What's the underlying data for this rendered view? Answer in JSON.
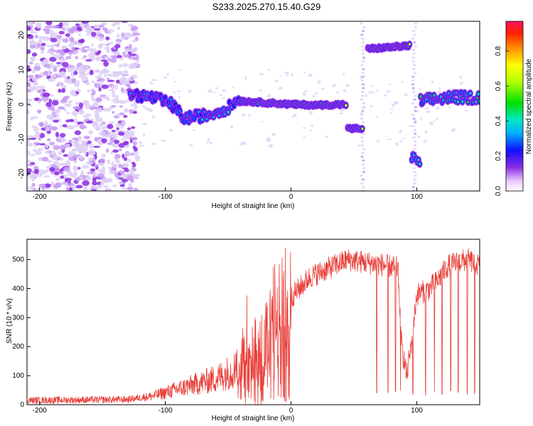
{
  "title": "S233.2025.270.15.40.G29",
  "colors": {
    "snr_line": "#e8403a",
    "faint_noise": "#ddd0f6",
    "axis": "#000000"
  },
  "chart_data": [
    {
      "type": "heatmap",
      "name": "spectrogram",
      "xlabel": "Height of straight line (km)",
      "ylabel": "Frequency (Hz)",
      "xlim": [
        -210,
        150
      ],
      "ylim": [
        -25,
        24
      ],
      "x_ticks": [
        -200,
        -100,
        0,
        100
      ],
      "x_tick_labels": [
        "-200",
        "-100",
        "0",
        "100"
      ],
      "y_ticks": [
        -20,
        -10,
        0,
        10,
        20
      ],
      "y_tick_labels": [
        "-20",
        "-10",
        "0",
        "10",
        "20"
      ],
      "colorbar": {
        "label": "Normalized spectral amplitude",
        "range": [
          0,
          0.97
        ],
        "ticks": [
          0.0,
          0.2,
          0.4,
          0.6,
          0.8
        ],
        "tick_labels": [
          "0.0",
          "0.2",
          "0.4",
          "0.6",
          "0.8"
        ]
      },
      "noise_region_x": [
        -210,
        -128
      ],
      "tracks": [
        {
          "x": [
            -128,
            -110,
            -95,
            -85
          ],
          "f": [
            3,
            2,
            0,
            -4
          ],
          "amp": 0.3
        },
        {
          "x": [
            -85,
            -65,
            -50,
            -40
          ],
          "f": [
            -4,
            -3,
            -1,
            2
          ],
          "amp": 0.35
        },
        {
          "x": [
            -40,
            -20,
            0,
            20,
            44
          ],
          "f": [
            1,
            0.5,
            0,
            -0.2,
            0
          ],
          "amp": 0.6
        },
        {
          "x": [
            45,
            57
          ],
          "f": [
            -7,
            -7
          ],
          "amp": 0.55
        },
        {
          "x": [
            61,
            78,
            95
          ],
          "f": [
            16,
            16.5,
            17
          ],
          "amp": 0.85
        },
        {
          "x": [
            96,
            103
          ],
          "f": [
            -15.5,
            -17
          ],
          "amp": 0.45
        },
        {
          "x": [
            103,
            125,
            150
          ],
          "f": [
            1,
            2,
            2
          ],
          "amp": 0.45
        }
      ],
      "faint_columns_x": [
        57,
        98
      ]
    },
    {
      "type": "line",
      "name": "snr",
      "xlabel": "Height of straight line (km)",
      "ylabel": "SNR (10 * v/v)",
      "xlim": [
        -210,
        150
      ],
      "ylim": [
        0,
        570
      ],
      "x_ticks": [
        -200,
        -100,
        0,
        100
      ],
      "x_tick_labels": [
        "-200",
        "-100",
        "0",
        "100"
      ],
      "y_ticks": [
        0,
        100,
        200,
        300,
        400,
        500
      ],
      "y_tick_labels": [
        "0",
        "100",
        "200",
        "300",
        "400",
        "500"
      ],
      "trend": {
        "x": [
          -210,
          -130,
          -110,
          -85,
          -60,
          -40,
          -25,
          -10,
          0,
          15,
          30,
          45,
          60,
          75,
          85,
          88,
          92,
          96,
          100,
          110,
          115,
          125,
          140,
          150
        ],
        "y": [
          15,
          18,
          30,
          60,
          90,
          130,
          200,
          280,
          370,
          440,
          470,
          500,
          490,
          480,
          470,
          200,
          100,
          220,
          380,
          400,
          420,
          480,
          500,
          480
        ]
      },
      "dropouts_x": [
        68,
        77,
        83,
        87,
        97,
        107,
        114,
        120,
        127,
        133,
        140,
        146
      ]
    }
  ]
}
